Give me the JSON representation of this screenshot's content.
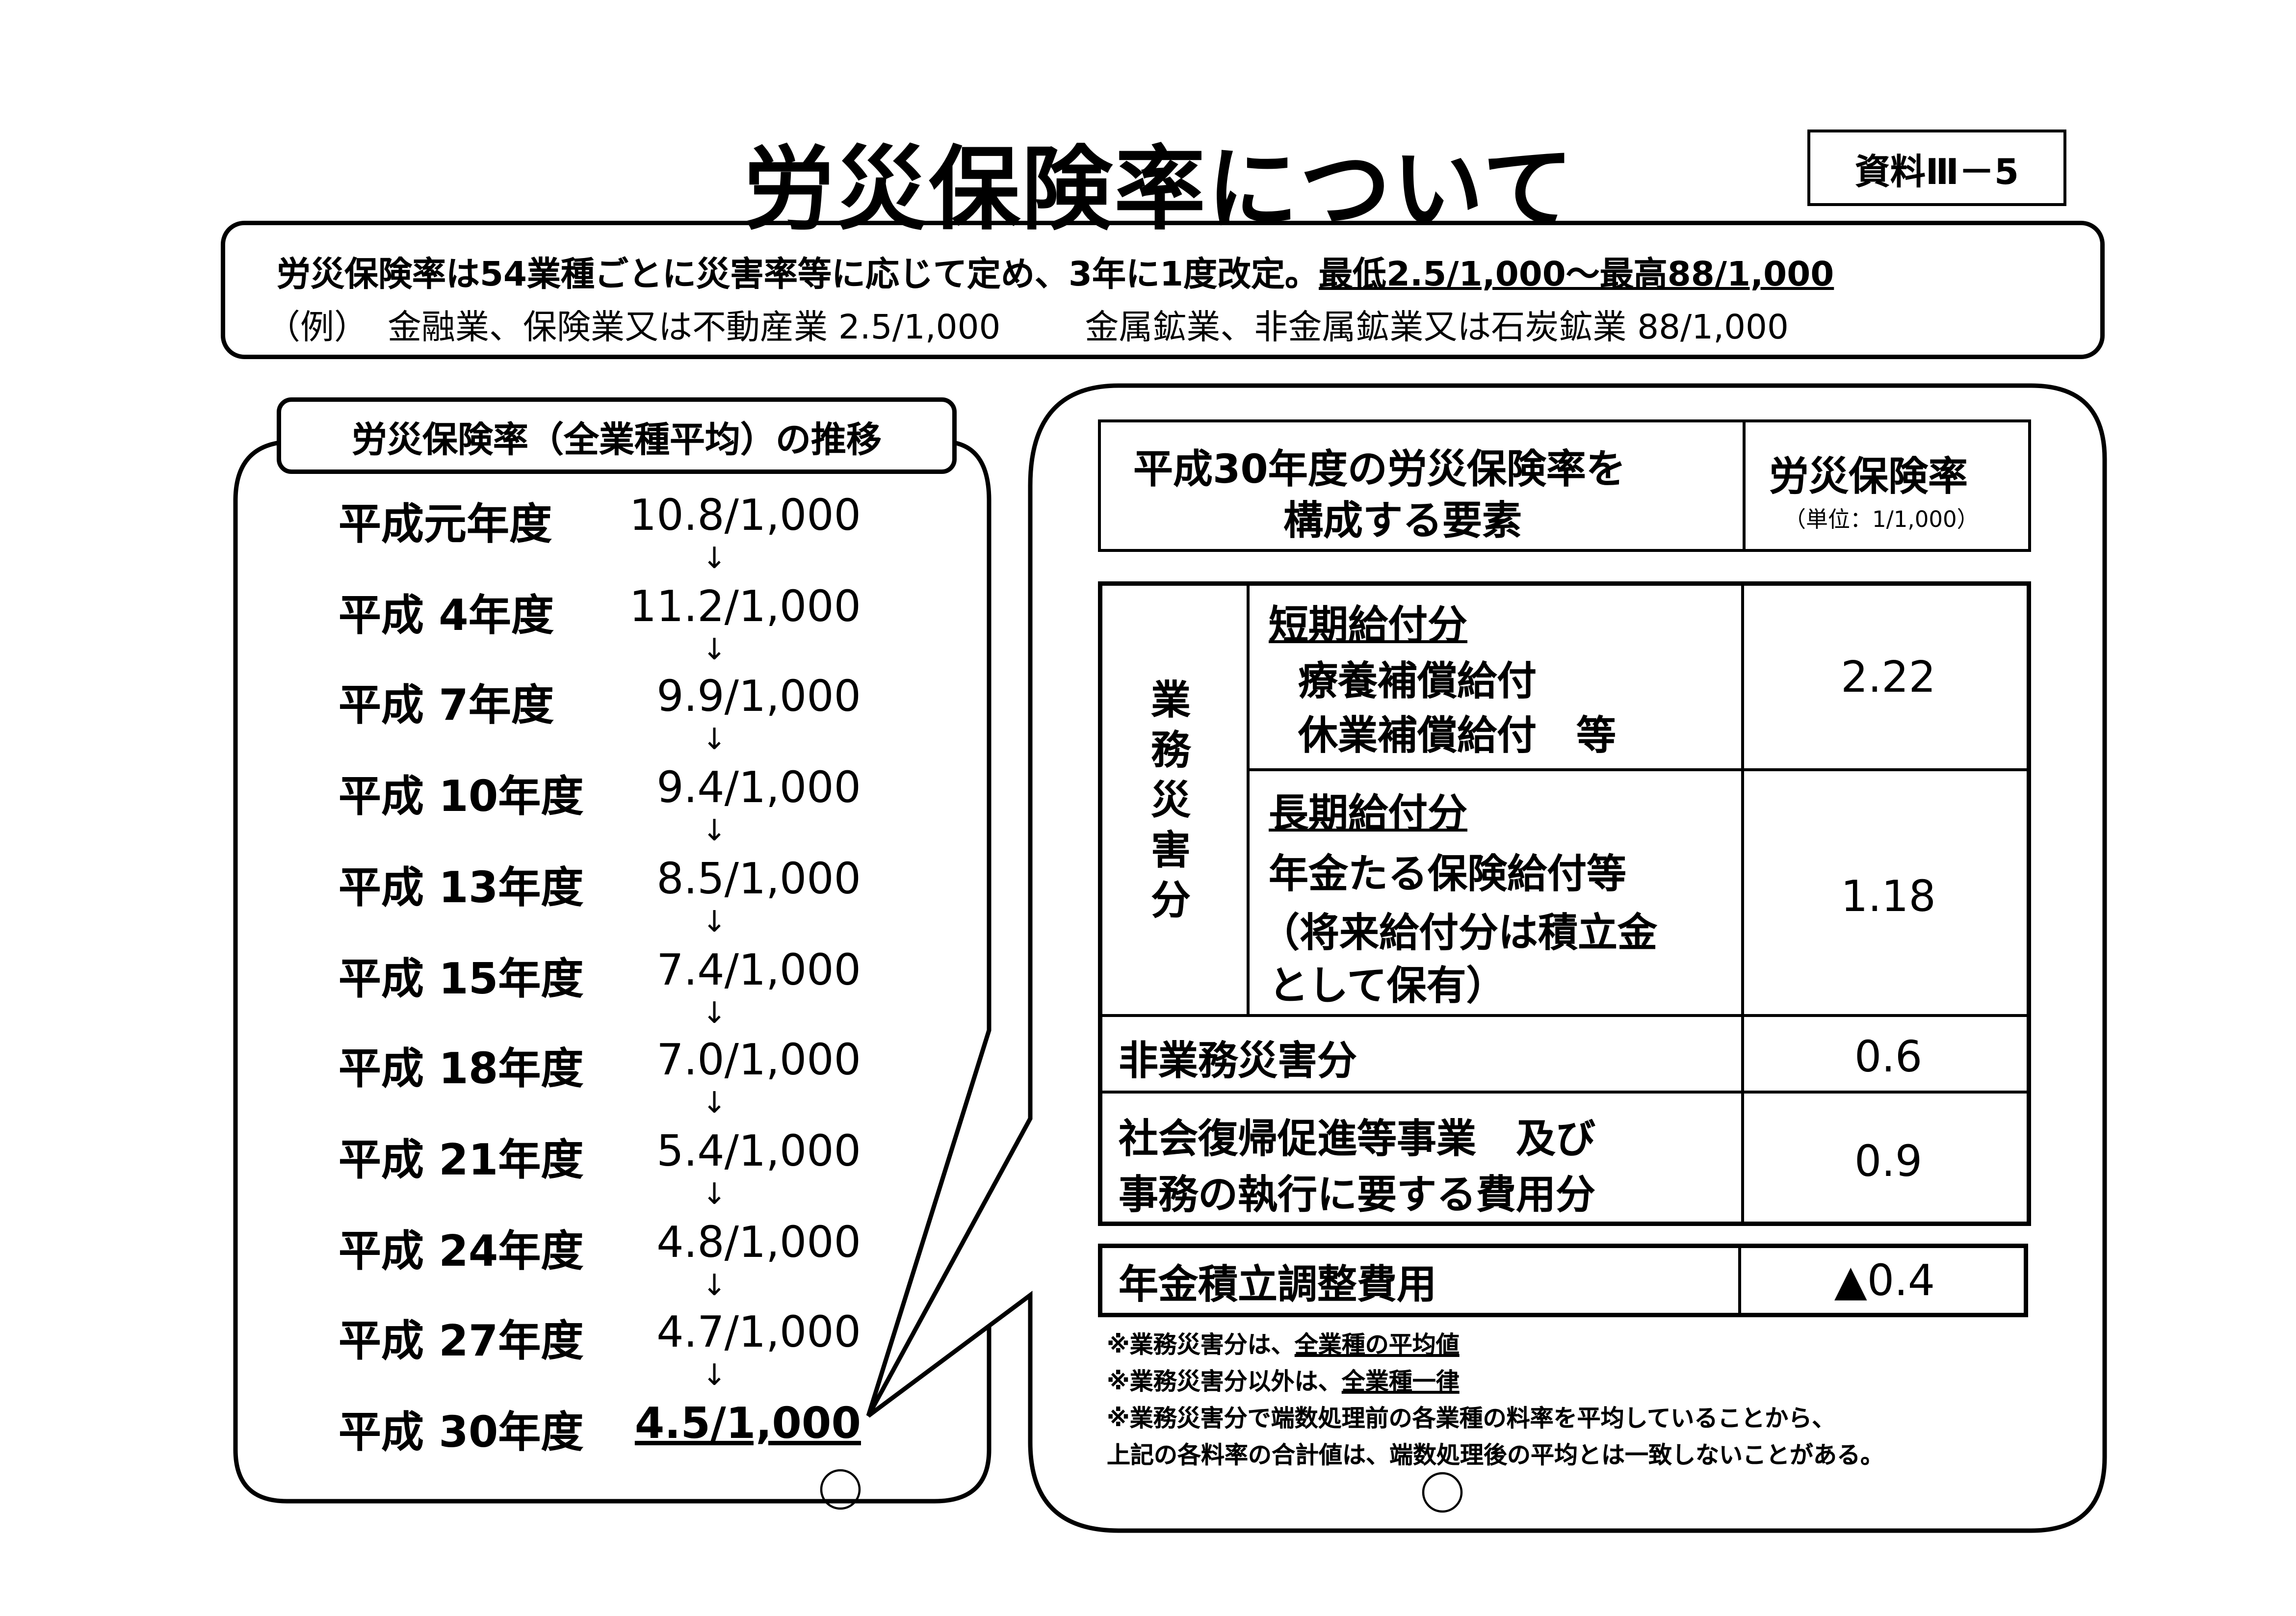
{
  "title": "労災保険率について",
  "doc_id": "資料Ⅲ－5",
  "summary": {
    "line1": "労災保険率は54業種ごとに災害率等に応じて定め、3年に1度改定。",
    "line1_range": "最低2.5/1,000～最高88/1,000",
    "example_label": "（例）",
    "example1": "金融業、保険業又は不動産業 2.5/1,000",
    "example2": "金属鉱業、非金属鉱業又は石炭鉱業 88/1,000"
  },
  "history": {
    "heading": "労災保険率（全業種平均）の推移",
    "arrow": "↓",
    "rows": [
      {
        "year": "平成元年度",
        "rate": "10.8/1,000"
      },
      {
        "year": "平成 4年度",
        "rate": "11.2/1,000"
      },
      {
        "year": "平成 7年度",
        "rate": "9.9/1,000"
      },
      {
        "year": "平成 10年度",
        "rate": "9.4/1,000"
      },
      {
        "year": "平成 13年度",
        "rate": "8.5/1,000"
      },
      {
        "year": "平成 15年度",
        "rate": "7.4/1,000"
      },
      {
        "year": "平成 18年度",
        "rate": "7.0/1,000"
      },
      {
        "year": "平成 21年度",
        "rate": "5.4/1,000"
      },
      {
        "year": "平成 24年度",
        "rate": "4.8/1,000"
      },
      {
        "year": "平成 27年度",
        "rate": "4.7/1,000"
      },
      {
        "year": "平成 30年度",
        "rate": "4.5/1,000"
      }
    ]
  },
  "breakdown": {
    "header_left_1": "平成30年度の労災保険率を",
    "header_left_2": "構成する要素",
    "header_right": "労災保険率",
    "header_unit": "（単位：1/1,000）",
    "group_label": "業務災害分",
    "short_title": "短期給付分",
    "short_item1": "療養補償給付",
    "short_item2": "休業補償給付　等",
    "short_value": "2.22",
    "long_title": "長期給付分",
    "long_line1": "年金たる保険給付等",
    "long_line2": "（将来給付分は積立金",
    "long_line3": "として保有）",
    "long_value": "1.18",
    "non_work_label": "非業務災害分",
    "non_work_value": "0.6",
    "social_line1": "社会復帰促進等事業　及び",
    "social_line2": "事務の執行に要する費用分",
    "social_value": "0.9",
    "pension_label": "年金積立調整費用",
    "pension_value": "▲0.4"
  },
  "notes": {
    "n1_prefix": "※業務災害分は、",
    "n1_ul": "全業種の平均値",
    "n2_prefix": "※業務災害分以外は、",
    "n2_ul": "全業種一律",
    "n3": "※業務災害分で端数処理前の各業種の料率を平均していることから、",
    "n4": "上記の各料率の合計値は、端数処理後の平均とは一致しないことがある。"
  }
}
